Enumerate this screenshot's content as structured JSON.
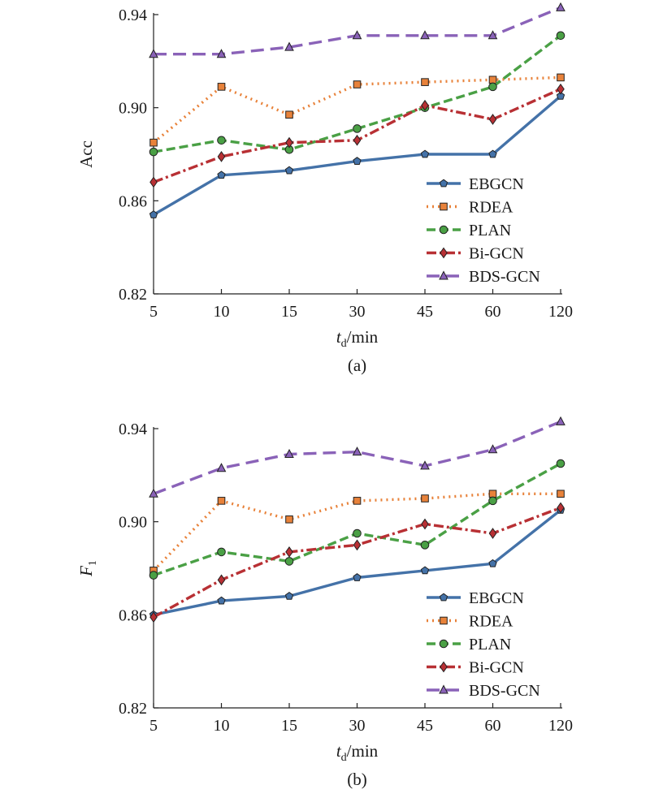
{
  "chart_data": [
    {
      "type": "line",
      "panel_label": "(a)",
      "categories": [
        "5",
        "10",
        "15",
        "30",
        "45",
        "60",
        "120"
      ],
      "xlabel": {
        "main": "t",
        "sub": "d",
        "suffix": "/min"
      },
      "ylabel": {
        "main": "Acc",
        "sub": ""
      },
      "ylim": [
        0.82,
        0.94
      ],
      "yticks": [
        "0.82",
        "0.86",
        "0.90",
        "0.94"
      ],
      "grid": false,
      "legend_position": "bottom-right",
      "series": [
        {
          "name": "EBGCN",
          "color": "#4472a8",
          "marker": "pentagon",
          "dash": "solid",
          "values": [
            0.854,
            0.871,
            0.873,
            0.877,
            0.88,
            0.88,
            0.905
          ]
        },
        {
          "name": "RDEA",
          "color": "#e8823a",
          "marker": "square",
          "dash": "dotted",
          "values": [
            0.885,
            0.909,
            0.897,
            0.91,
            0.911,
            0.912,
            0.913
          ]
        },
        {
          "name": "PLAN",
          "color": "#4aa045",
          "marker": "circle",
          "dash": "dashed",
          "values": [
            0.881,
            0.886,
            0.882,
            0.891,
            0.9,
            0.909,
            0.931
          ]
        },
        {
          "name": "Bi-GCN",
          "color": "#b83034",
          "marker": "diamond",
          "dash": "dashdot",
          "values": [
            0.868,
            0.879,
            0.885,
            0.886,
            0.901,
            0.895,
            0.908
          ]
        },
        {
          "name": "BDS-GCN",
          "color": "#8a62b8",
          "marker": "triangle",
          "dash": "longdash",
          "values": [
            0.923,
            0.923,
            0.926,
            0.931,
            0.931,
            0.931,
            0.943
          ]
        }
      ]
    },
    {
      "type": "line",
      "panel_label": "(b)",
      "categories": [
        "5",
        "10",
        "15",
        "30",
        "45",
        "60",
        "120"
      ],
      "xlabel": {
        "main": "t",
        "sub": "d",
        "suffix": "/min"
      },
      "ylabel": {
        "main": "F",
        "sub": "1"
      },
      "ylim": [
        0.82,
        0.94
      ],
      "yticks": [
        "0.82",
        "0.86",
        "0.90",
        "0.94"
      ],
      "grid": false,
      "legend_position": "bottom-right",
      "series": [
        {
          "name": "EBGCN",
          "color": "#4472a8",
          "marker": "pentagon",
          "dash": "solid",
          "values": [
            0.86,
            0.866,
            0.868,
            0.876,
            0.879,
            0.882,
            0.905
          ]
        },
        {
          "name": "RDEA",
          "color": "#e8823a",
          "marker": "square",
          "dash": "dotted",
          "values": [
            0.879,
            0.909,
            0.901,
            0.909,
            0.91,
            0.912,
            0.912
          ]
        },
        {
          "name": "PLAN",
          "color": "#4aa045",
          "marker": "circle",
          "dash": "dashed",
          "values": [
            0.877,
            0.887,
            0.883,
            0.895,
            0.89,
            0.909,
            0.925
          ]
        },
        {
          "name": "Bi-GCN",
          "color": "#b83034",
          "marker": "diamond",
          "dash": "dashdot",
          "values": [
            0.859,
            0.875,
            0.887,
            0.89,
            0.899,
            0.895,
            0.906
          ]
        },
        {
          "name": "BDS-GCN",
          "color": "#8a62b8",
          "marker": "triangle",
          "dash": "longdash",
          "values": [
            0.912,
            0.923,
            0.929,
            0.93,
            0.924,
            0.931,
            0.943
          ]
        }
      ]
    }
  ]
}
